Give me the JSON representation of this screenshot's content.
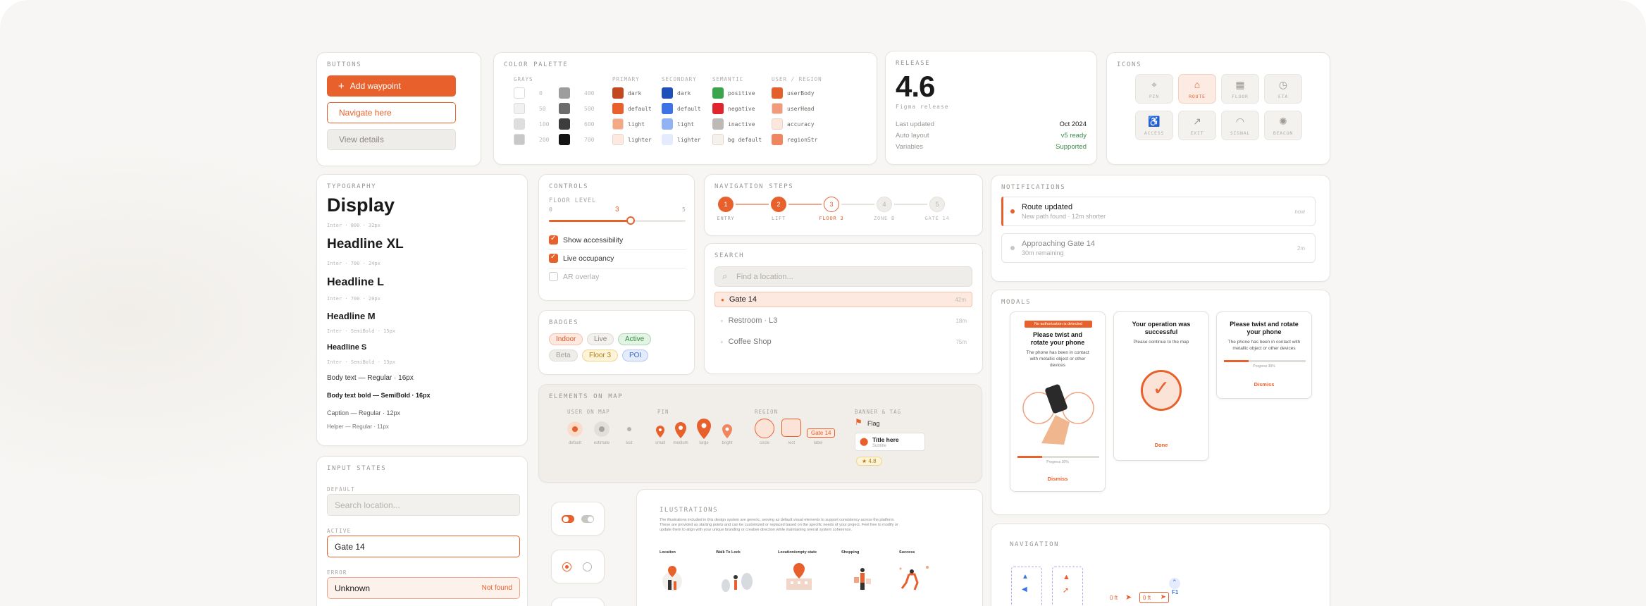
{
  "buttons": {
    "title": "BUTTONS",
    "primary": "Add waypoint",
    "secondary": "Navigate here",
    "tertiary": "View details"
  },
  "palette": {
    "title": "COLOR PALETTE",
    "groups": {
      "gray": "GRAYS",
      "primary": "PRIMARY",
      "secondary": "SECONDARY",
      "semantic": "SEMANTIC",
      "user": "USER / REGION"
    },
    "grays": [
      {
        "a": "#ffffff",
        "la": "0",
        "b": "#9d9d9d",
        "lb": "400"
      },
      {
        "a": "#f1f1f1",
        "la": "50",
        "b": "#6d6d6d",
        "lb": "500"
      },
      {
        "a": "#dedede",
        "la": "100",
        "b": "#3d3d3d",
        "lb": "600"
      },
      {
        "a": "#c8c8c8",
        "la": "200",
        "b": "#141414",
        "lb": "700"
      }
    ],
    "primary": [
      {
        "c": "#c2491f",
        "l": "dark"
      },
      {
        "c": "#e8612c",
        "l": "default"
      },
      {
        "c": "#f5a886",
        "l": "light"
      },
      {
        "c": "#fde9df",
        "l": "lighter"
      }
    ],
    "secondary": [
      {
        "c": "#1f4fb8",
        "l": "dark"
      },
      {
        "c": "#3d73e6",
        "l": "default"
      },
      {
        "c": "#91b3f4",
        "l": "light"
      },
      {
        "c": "#e3ebfc",
        "l": "lighter"
      }
    ],
    "semantic": [
      {
        "c": "#3aa54a",
        "l": "positive"
      },
      {
        "c": "#e0242b",
        "l": "negative"
      },
      {
        "c": "#bdbab6",
        "l": "inactive"
      },
      {
        "c": "#f5f2ee",
        "l": "bg default"
      }
    ],
    "user": [
      {
        "c": "#e35f2c",
        "l": "userBody"
      },
      {
        "c": "#f19b7a",
        "l": "userHead"
      },
      {
        "c": "#fde7dd",
        "l": "accuracy"
      },
      {
        "c": "#f08660",
        "l": "regionStr"
      }
    ]
  },
  "release": {
    "title": "RELEASE",
    "version": "4.6",
    "subtitle": "Figma release",
    "rows": [
      {
        "k": "Last updated",
        "v": "Oct 2024",
        "color": "#1a1a1a"
      },
      {
        "k": "Auto layout",
        "v": "v5 ready",
        "color": "#3a8a48"
      },
      {
        "k": "Variables",
        "v": "Supported",
        "color": "#3a8a48"
      }
    ]
  },
  "icons": {
    "title": "ICONS",
    "items": [
      {
        "g": "⌖",
        "l": "PIN"
      },
      {
        "g": "⌂",
        "l": "ROUTE"
      },
      {
        "g": "▦",
        "l": "FLOOR"
      },
      {
        "g": "◷",
        "l": "ETA"
      },
      {
        "g": "♿",
        "l": "ACCESS"
      },
      {
        "g": "↗",
        "l": "EXIT"
      },
      {
        "g": "◠",
        "l": "SIGNAL"
      },
      {
        "g": "✺",
        "l": "BEACON"
      }
    ]
  },
  "typography": {
    "title": "TYPOGRAPHY",
    "display": "Display",
    "display_meta": "Inter · 800 · 32px",
    "hxl": "Headline XL",
    "hxl_meta": "Inter · 700 · 24px",
    "hl": "Headline L",
    "hl_meta": "Inter · 700 · 20px",
    "hm": "Headline M",
    "hm_meta": "Inter · SemiBold · 15px",
    "hs": "Headline S",
    "hs_meta": "Inter · SemiBold · 13px",
    "body": "Body text — Regular · 16px",
    "body_bold": "Body text bold — SemiBold · 16px",
    "caption": "Caption — Regular · 12px",
    "helper": "Helper — Regular · 11px"
  },
  "controls": {
    "title": "CONTROLS",
    "floor_label": "FLOOR LEVEL",
    "min": "0",
    "value": "3",
    "max": "5",
    "fraction": 0.6,
    "items": [
      {
        "l": "Show accessibility",
        "on": true
      },
      {
        "l": "Live occupancy",
        "on": true
      },
      {
        "l": "AR overlay",
        "on": false
      }
    ]
  },
  "badges": {
    "title": "BADGES",
    "row1": [
      {
        "l": "Indoor",
        "bg": "#fde9df",
        "fg": "#d2582a",
        "bd": "#f4c3ac"
      },
      {
        "l": "Live",
        "bg": "#f3f1ee",
        "fg": "#8a857f",
        "bd": "#dedad5"
      },
      {
        "l": "Active",
        "bg": "#e3f4e4",
        "fg": "#2e8a3e",
        "bd": "#a9d9b0"
      }
    ],
    "row2": [
      {
        "l": "Beta",
        "bg": "#efedea",
        "fg": "#a29d98",
        "bd": "#e0dcd7"
      },
      {
        "l": "Floor 3",
        "bg": "#fdf3d9",
        "fg": "#b27d12",
        "bd": "#f0d58d"
      },
      {
        "l": "POI",
        "bg": "#e4ecfc",
        "fg": "#3a63c8",
        "bd": "#b2c7f3"
      }
    ]
  },
  "steps": {
    "title": "NAVIGATION STEPS",
    "items": [
      {
        "n": "1",
        "l": "ENTRY",
        "state": "done"
      },
      {
        "n": "2",
        "l": "LIFT",
        "state": "done"
      },
      {
        "n": "3",
        "l": "FLOOR 3",
        "state": "current"
      },
      {
        "n": "4",
        "l": "ZONE B",
        "state": "todo"
      },
      {
        "n": "5",
        "l": "GATE 14",
        "state": "todo"
      }
    ]
  },
  "search": {
    "title": "SEARCH",
    "placeholder": "Find a location...",
    "results": [
      {
        "l": "Gate 14",
        "m": "42m",
        "active": true
      },
      {
        "l": "Restroom · L3",
        "m": "18m",
        "active": false
      },
      {
        "l": "Coffee Shop",
        "m": "75m",
        "active": false
      }
    ]
  },
  "notifications": {
    "title": "NOTIFICATIONS",
    "items": [
      {
        "t": "Route updated",
        "s": "New path found · 12m shorter",
        "time": "now",
        "accent": true
      },
      {
        "t": "Approaching Gate 14",
        "s": "30m remaining",
        "time": "2m",
        "accent": false
      }
    ]
  },
  "map": {
    "title": "ELEMENTS ON MAP",
    "user_h": "USER ON MAP",
    "user_caps": [
      "default",
      "estimate",
      "lost"
    ],
    "pin_h": "PIN",
    "pin_caps": [
      "small",
      "medium",
      "large",
      "bright"
    ],
    "region_h": "REGION",
    "region_caps": [
      "circle",
      "rect",
      "label"
    ],
    "region_label": "Gate 14",
    "banner_h": "BANNER & TAG",
    "flag": "Flag",
    "card_title": "Title here",
    "card_sub": "Subtitle",
    "rating": "★ 4.8"
  },
  "input_states": {
    "title": "INPUT STATES",
    "default_label": "DEFAULT",
    "default_placeholder": "Search location...",
    "active_label": "ACTIVE",
    "active_value": "Gate 14",
    "error_label": "ERROR",
    "error_value": "Unknown",
    "error_msg": "Not found"
  },
  "modals": {
    "title": "MODALS",
    "m1": {
      "banner": "No authorization is detected",
      "head": "Please twist and rotate your phone",
      "body": "The phone has been in contact with metallic object or other devices",
      "progress": "Progress 30%",
      "link": "Dismiss"
    },
    "m2": {
      "head": "Your operation was successful",
      "body": "Please continue to the map",
      "link": "Done"
    },
    "m3": {
      "head": "Please twist and rotate your phone",
      "body": "The phone has been in contact with metallic object or other devices",
      "progress": "Progress 30%",
      "link": "Dismiss"
    }
  },
  "illustrations": {
    "title": "ILUSTRATIONS",
    "desc1": "The illustrations included in this design system are generic, serving as default visual elements to support consistency across the platform.",
    "desc2": "These are provided as starting points and can be customized or replaced based on the specific needs of your project. Feel free to modify or",
    "desc3": "update them to align with your unique branding or creative direction while maintaining overall system coherence.",
    "items": [
      "Location",
      "Walk To Lock",
      "Location/empty state",
      "Shopping",
      "Success"
    ]
  },
  "navigation": {
    "title": "NAVIGATION",
    "d1": "0 ft",
    "d2": "0 ft",
    "floor": "F1"
  }
}
